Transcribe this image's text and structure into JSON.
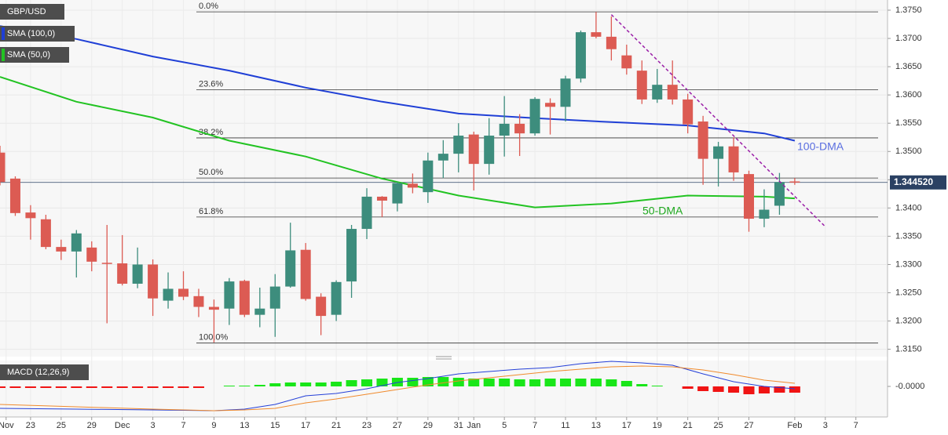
{
  "chart_data": {
    "type": "candlestick",
    "symbol": "GBP/USD",
    "up_color": "#3d8d7d",
    "down_color": "#dc5b53",
    "open": [
      1.3498,
      1.3452,
      1.3392,
      1.338,
      1.3331,
      1.3323,
      1.333,
      1.3303,
      1.3302,
      1.3266,
      1.33,
      1.3236,
      1.3257,
      1.3244,
      1.3225,
      1.3222,
      1.3271,
      1.3211,
      1.3222,
      1.3261,
      1.3326,
      1.3243,
      1.3211,
      1.327,
      1.3363,
      1.342,
      1.3408,
      1.3443,
      1.3428,
      1.3484,
      1.3496,
      1.353,
      1.3478,
      1.3528,
      1.3549,
      1.3532,
      1.3586,
      1.3579,
      1.3629,
      1.3711,
      1.3703,
      1.367,
      1.3643,
      1.3592,
      1.3618,
      1.3592,
      1.3553,
      1.3487,
      1.3509,
      1.346,
      1.3381,
      1.3404,
      1.3447
    ],
    "high": [
      1.351,
      1.3456,
      1.3405,
      1.3388,
      1.3344,
      1.3361,
      1.3341,
      1.337,
      1.3352,
      1.333,
      1.3309,
      1.3286,
      1.3288,
      1.3257,
      1.3238,
      1.3276,
      1.3273,
      1.3259,
      1.3283,
      1.3374,
      1.3338,
      1.3249,
      1.3272,
      1.337,
      1.3435,
      1.3421,
      1.3446,
      1.3461,
      1.3498,
      1.352,
      1.355,
      1.3535,
      1.3559,
      1.3598,
      1.3566,
      1.3596,
      1.3594,
      1.3634,
      1.3714,
      1.3747,
      1.3739,
      1.3689,
      1.3661,
      1.3646,
      1.3661,
      1.3602,
      1.3563,
      1.3517,
      1.3525,
      1.3466,
      1.3433,
      1.3462,
      1.3453
    ],
    "low": [
      1.344,
      1.3386,
      1.3344,
      1.3327,
      1.3308,
      1.3277,
      1.3288,
      1.3196,
      1.3263,
      1.3258,
      1.3209,
      1.3222,
      1.3237,
      1.3207,
      1.3162,
      1.3193,
      1.3207,
      1.3189,
      1.3172,
      1.3259,
      1.3236,
      1.3175,
      1.32,
      1.3241,
      1.3345,
      1.3384,
      1.3394,
      1.3426,
      1.3409,
      1.3453,
      1.3463,
      1.3431,
      1.3459,
      1.3491,
      1.3492,
      1.3528,
      1.353,
      1.3553,
      1.3622,
      1.37,
      1.3661,
      1.3636,
      1.3584,
      1.3586,
      1.3583,
      1.3532,
      1.3441,
      1.3438,
      1.3448,
      1.3358,
      1.3366,
      1.3388,
      1.3441
    ],
    "close": [
      1.3446,
      1.3391,
      1.3382,
      1.3331,
      1.3323,
      1.3355,
      1.3305,
      1.3302,
      1.3266,
      1.33,
      1.324,
      1.3257,
      1.3243,
      1.3225,
      1.322,
      1.327,
      1.3211,
      1.3222,
      1.3261,
      1.3325,
      1.3239,
      1.3209,
      1.3269,
      1.3363,
      1.342,
      1.3413,
      1.3444,
      1.3436,
      1.3484,
      1.3496,
      1.3528,
      1.3478,
      1.3528,
      1.3549,
      1.3532,
      1.3593,
      1.3579,
      1.3629,
      1.3711,
      1.3703,
      1.3681,
      1.3647,
      1.3592,
      1.3618,
      1.3592,
      1.3548,
      1.3487,
      1.3509,
      1.3463,
      1.3381,
      1.3397,
      1.3446,
      1.3445
    ],
    "xlim": [
      0,
      58.07
    ],
    "xticks": [
      {
        "value": 0.4,
        "label": "Nov"
      },
      {
        "value": 2,
        "label": "23"
      },
      {
        "value": 4,
        "label": "25"
      },
      {
        "value": 6,
        "label": "29"
      },
      {
        "value": 8,
        "label": "Dec"
      },
      {
        "value": 10,
        "label": "3"
      },
      {
        "value": 12,
        "label": "7"
      },
      {
        "value": 14,
        "label": "9"
      },
      {
        "value": 16,
        "label": "13"
      },
      {
        "value": 18,
        "label": "15"
      },
      {
        "value": 20,
        "label": "17"
      },
      {
        "value": 22,
        "label": "21"
      },
      {
        "value": 24,
        "label": "23"
      },
      {
        "value": 26,
        "label": "27"
      },
      {
        "value": 28,
        "label": "29"
      },
      {
        "value": 30,
        "label": "31"
      },
      {
        "value": 31,
        "label": "Jan"
      },
      {
        "value": 33,
        "label": "5"
      },
      {
        "value": 35,
        "label": "7"
      },
      {
        "value": 37,
        "label": "11"
      },
      {
        "value": 39,
        "label": "13"
      },
      {
        "value": 41,
        "label": "17"
      },
      {
        "value": 43,
        "label": "19"
      },
      {
        "value": 45,
        "label": "21"
      },
      {
        "value": 47,
        "label": "25"
      },
      {
        "value": 49,
        "label": "27"
      },
      {
        "value": 52,
        "label": "Feb"
      },
      {
        "value": 54,
        "label": "3"
      },
      {
        "value": 56,
        "label": "7"
      }
    ],
    "ylim": [
      1.3137,
      1.3768
    ],
    "yticks": [
      {
        "value": 1.315,
        "label": "1.3150"
      },
      {
        "value": 1.32,
        "label": "1.3200"
      },
      {
        "value": 1.325,
        "label": "1.3250"
      },
      {
        "value": 1.33,
        "label": "1.3300"
      },
      {
        "value": 1.335,
        "label": "1.3350"
      },
      {
        "value": 1.34,
        "label": "1.3400"
      },
      {
        "value": 1.345,
        "label": "1.3450"
      },
      {
        "value": 1.35,
        "label": "1.3500"
      },
      {
        "value": 1.355,
        "label": "1.3550"
      },
      {
        "value": 1.36,
        "label": "1.3600"
      },
      {
        "value": 1.365,
        "label": "1.3650"
      },
      {
        "value": 1.37,
        "label": "1.3700"
      },
      {
        "value": 1.375,
        "label": "1.3750"
      }
    ],
    "grid": true,
    "current": {
      "value": 1.34452,
      "label": "1.344520",
      "color": "#2b4163"
    },
    "sma": [
      {
        "name": "SMA (100,0)",
        "annotation": "100-DMA",
        "color": "#1f3fd6",
        "x": [
          0,
          5,
          10,
          15,
          20,
          25,
          30,
          35,
          40,
          45,
          50,
          52
        ],
        "values": [
          1.3722,
          1.3699,
          1.3668,
          1.3643,
          1.3613,
          1.3588,
          1.3567,
          1.3559,
          1.3552,
          1.3546,
          1.3532,
          1.3519
        ]
      },
      {
        "name": "SMA (50,0)",
        "annotation": "50-DMA",
        "color": "#22c322",
        "x": [
          0,
          5,
          10,
          15,
          20,
          25,
          30,
          35,
          40,
          45,
          50,
          52
        ],
        "values": [
          1.3632,
          1.3588,
          1.356,
          1.3519,
          1.3491,
          1.3452,
          1.3422,
          1.3401,
          1.3408,
          1.3422,
          1.342,
          1.3417
        ]
      }
    ],
    "fib": [
      {
        "label": "0.0%",
        "value": 1.3747
      },
      {
        "label": "23.6%",
        "value": 1.3609
      },
      {
        "label": "38.2%",
        "value": 1.3524
      },
      {
        "label": "50.0%",
        "value": 1.3453
      },
      {
        "label": "61.8%",
        "value": 1.3384
      },
      {
        "label": "100.0%",
        "value": 1.3161
      }
    ],
    "trendline": {
      "color": "#9b1fa8",
      "x": [
        40,
        54
      ],
      "values": [
        1.3742,
        1.3367
      ]
    },
    "macd": {
      "name": "MACD (12,26,9)",
      "ylim": [
        -0.0111,
        0.0099
      ],
      "yticks": [
        {
          "value": 0,
          "label": "-0.0000"
        }
      ],
      "up_color": "#19e619",
      "down_color": "#f01414",
      "histogram": [
        -0.0006,
        -0.0006,
        -0.0006,
        -0.0006,
        -0.0006,
        -0.0006,
        -0.0006,
        -0.0006,
        -0.0006,
        -0.0006,
        -0.0006,
        -0.0006,
        -0.0006,
        -0.0006,
        0,
        0.0003,
        0.0003,
        0.0006,
        0.0012,
        0.0015,
        0.0015,
        0.0015,
        0.0018,
        0.0024,
        0.0027,
        0.003,
        0.0033,
        0.0033,
        0.0036,
        0.0036,
        0.0033,
        0.003,
        0.003,
        0.003,
        0.0027,
        0.0027,
        0.003,
        0.003,
        0.003,
        0.003,
        0.0027,
        0.0021,
        0.0009,
        0.0003,
        0,
        -0.0009,
        -0.0018,
        -0.0021,
        -0.0024,
        -0.003,
        -0.0027,
        -0.0024,
        -0.0024
      ],
      "lines": [
        {
          "color": "#2540d8",
          "x": [
            0,
            5,
            10,
            14,
            16,
            18,
            20,
            22,
            24,
            26,
            28,
            30,
            32,
            34,
            36,
            38,
            40,
            42,
            44,
            46,
            48,
            50,
            52
          ],
          "values": [
            -0.0084,
            -0.0087,
            -0.009,
            -0.0093,
            -0.0087,
            -0.0069,
            -0.0036,
            -0.0027,
            -0.0009,
            0.0015,
            0.003,
            0.0048,
            0.0057,
            0.0066,
            0.0072,
            0.0087,
            0.0096,
            0.009,
            0.0081,
            0.0048,
            0.0018,
            0,
            -0.0009
          ]
        },
        {
          "color": "#f08a2c",
          "x": [
            0,
            5,
            10,
            14,
            16,
            18,
            20,
            22,
            24,
            26,
            28,
            30,
            32,
            34,
            36,
            38,
            40,
            42,
            44,
            46,
            48,
            50,
            52
          ],
          "values": [
            -0.0069,
            -0.0078,
            -0.0087,
            -0.0093,
            -0.009,
            -0.0084,
            -0.0063,
            -0.0048,
            -0.003,
            -0.0012,
            0.0006,
            0.0021,
            0.0033,
            0.0045,
            0.0057,
            0.0066,
            0.0075,
            0.0078,
            0.0075,
            0.0063,
            0.0045,
            0.0024,
            0.0012
          ]
        }
      ]
    }
  }
}
